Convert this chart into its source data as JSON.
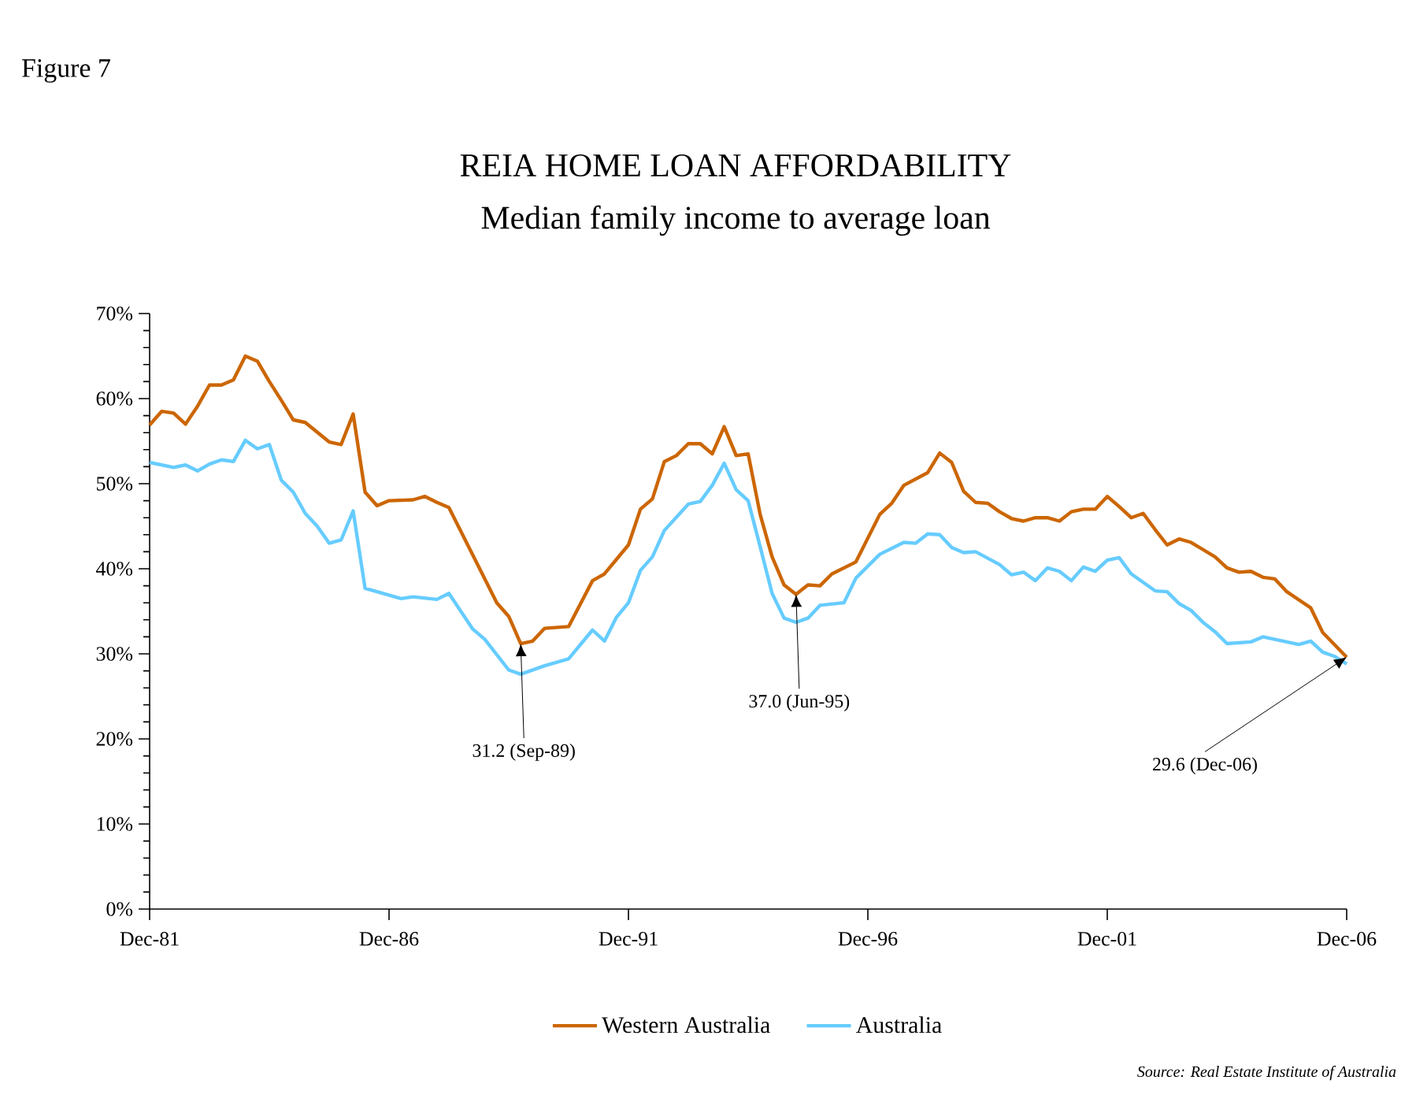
{
  "chart_data": {
    "type": "line",
    "title": "REIA HOME LOAN AFFORDABILITY",
    "subtitle": "Median family income to average loan",
    "annotations": [
      "Figure 7",
      "Source: Real Estate Institute of Australia",
      {
        "text": "31.2 (Sep-89)",
        "x": "1989-09",
        "y": 31.2
      },
      {
        "text": "37.0 (Jun-95)",
        "x": "1995-06",
        "y": 37.0
      },
      {
        "text": "29.6 (Dec-06)",
        "x": "2006-12",
        "y": 29.6
      }
    ],
    "series": [
      {
        "name": "Western Australia",
        "color": "#cc6600",
        "x": [
          "1981-12",
          "1982-03",
          "1982-06",
          "1982-09",
          "1982-12",
          "1983-03",
          "1983-06",
          "1983-09",
          "1983-12",
          "1984-03",
          "1984-06",
          "1984-09",
          "1984-12",
          "1985-03",
          "1985-09",
          "1985-12",
          "1986-03",
          "1986-06",
          "1986-09",
          "1986-12",
          "1987-06",
          "1987-09",
          "1987-12",
          "1988-03",
          "1989-03",
          "1989-06",
          "1989-09",
          "1989-12",
          "1990-03",
          "1990-09",
          "1991-03",
          "1991-06",
          "1991-12",
          "1992-03",
          "1992-06",
          "1992-09",
          "1992-12",
          "1993-03",
          "1993-06",
          "1993-09",
          "1993-12",
          "1994-03",
          "1994-06",
          "1994-09",
          "1994-12",
          "1995-03",
          "1995-06",
          "1995-09",
          "1995-12",
          "1996-03",
          "1996-09",
          "1997-03",
          "1997-06",
          "1997-09",
          "1998-03",
          "1998-06",
          "1998-09",
          "1998-12",
          "1999-03",
          "1999-06",
          "1999-09",
          "1999-12",
          "2000-03",
          "2000-06",
          "2000-09",
          "2000-12",
          "2001-03",
          "2001-06",
          "2001-09",
          "2001-12",
          "2002-03",
          "2002-06",
          "2002-09",
          "2002-12",
          "2003-03",
          "2003-06",
          "2003-09",
          "2004-03",
          "2004-06",
          "2004-09",
          "2004-12",
          "2005-03",
          "2005-06",
          "2005-09",
          "2006-03",
          "2006-06",
          "2006-12"
        ],
        "values": [
          56.9,
          58.5,
          58.3,
          57.0,
          59.1,
          61.6,
          61.6,
          62.2,
          65.0,
          64.4,
          62.0,
          59.8,
          57.5,
          57.2,
          54.9,
          54.6,
          58.2,
          49.0,
          47.4,
          48.0,
          48.1,
          48.5,
          47.8,
          47.2,
          36.0,
          34.4,
          31.2,
          31.5,
          33.0,
          33.2,
          38.6,
          39.4,
          42.8,
          47.0,
          48.2,
          52.6,
          53.3,
          54.7,
          54.7,
          53.5,
          56.7,
          53.3,
          53.5,
          46.4,
          41.4,
          38.1,
          37.0,
          38.1,
          38.0,
          39.4,
          40.8,
          46.4,
          47.7,
          49.8,
          51.3,
          53.6,
          52.5,
          49.1,
          47.8,
          47.7,
          46.7,
          45.9,
          45.6,
          46.0,
          46.0,
          45.6,
          46.7,
          47.0,
          47.0,
          48.5,
          47.3,
          46.0,
          46.5,
          44.6,
          42.8,
          43.5,
          43.1,
          41.4,
          40.1,
          39.6,
          39.7,
          39.0,
          38.8,
          37.3,
          35.4,
          32.5,
          29.6
        ]
      },
      {
        "name": "Australia",
        "color": "#66ccff",
        "x": [
          "1981-12",
          "1982-06",
          "1982-09",
          "1982-12",
          "1983-03",
          "1983-06",
          "1983-09",
          "1983-12",
          "1984-03",
          "1984-06",
          "1984-09",
          "1984-12",
          "1985-03",
          "1985-06",
          "1985-09",
          "1985-12",
          "1986-03",
          "1986-06",
          "1986-09",
          "1987-03",
          "1987-06",
          "1987-12",
          "1988-03",
          "1988-09",
          "1988-12",
          "1989-06",
          "1989-09",
          "1990-03",
          "1990-09",
          "1991-03",
          "1991-06",
          "1991-09",
          "1991-12",
          "1992-03",
          "1992-06",
          "1992-09",
          "1993-03",
          "1993-06",
          "1993-09",
          "1993-12",
          "1994-03",
          "1994-06",
          "1994-09",
          "1994-12",
          "1995-03",
          "1995-06",
          "1995-09",
          "1995-12",
          "1996-06",
          "1996-09",
          "1997-03",
          "1997-09",
          "1997-12",
          "1998-03",
          "1998-06",
          "1998-09",
          "1998-12",
          "1999-03",
          "1999-09",
          "1999-12",
          "2000-03",
          "2000-06",
          "2000-09",
          "2000-12",
          "2001-03",
          "2001-06",
          "2001-09",
          "2001-12",
          "2002-03",
          "2002-06",
          "2002-12",
          "2003-03",
          "2003-06",
          "2003-09",
          "2003-12",
          "2004-03",
          "2004-06",
          "2004-12",
          "2005-03",
          "2005-06",
          "2005-12",
          "2006-03",
          "2006-06",
          "2006-09",
          "2006-12"
        ],
        "values": [
          52.5,
          51.9,
          52.2,
          51.5,
          52.3,
          52.8,
          52.6,
          55.1,
          54.1,
          54.6,
          50.4,
          49.0,
          46.5,
          45.0,
          43.0,
          43.4,
          46.8,
          37.7,
          37.3,
          36.5,
          36.7,
          36.4,
          37.1,
          32.9,
          31.7,
          28.1,
          27.6,
          28.6,
          29.4,
          32.8,
          31.5,
          34.3,
          36.0,
          39.8,
          41.4,
          44.5,
          47.6,
          47.9,
          49.8,
          52.4,
          49.3,
          48.0,
          42.6,
          37.1,
          34.2,
          33.7,
          34.2,
          35.7,
          36.0,
          38.9,
          41.7,
          43.1,
          43.0,
          44.1,
          44.0,
          42.5,
          41.9,
          42.0,
          40.5,
          39.3,
          39.6,
          38.6,
          40.1,
          39.7,
          38.6,
          40.2,
          39.7,
          41.0,
          41.3,
          39.4,
          37.4,
          37.3,
          35.9,
          35.1,
          33.7,
          32.6,
          31.2,
          31.4,
          32.0,
          31.7,
          31.1,
          31.5,
          30.2,
          29.7,
          28.8
        ]
      }
    ],
    "xlim": [
      "1981-12",
      "2006-12"
    ],
    "xticks": [
      {
        "value": "1981-12",
        "label": "Dec-81"
      },
      {
        "value": "1986-12",
        "label": "Dec-86"
      },
      {
        "value": "1991-12",
        "label": "Dec-91"
      },
      {
        "value": "1996-12",
        "label": "Dec-96"
      },
      {
        "value": "2001-12",
        "label": "Dec-01"
      },
      {
        "value": "2006-12",
        "label": "Dec-06"
      }
    ],
    "ylim": [
      0,
      70
    ],
    "yticks": [
      {
        "value": 0,
        "label": "0%"
      },
      {
        "value": 10,
        "label": "10%"
      },
      {
        "value": 20,
        "label": "20%"
      },
      {
        "value": 30,
        "label": "30%"
      },
      {
        "value": 40,
        "label": "40%"
      },
      {
        "value": 50,
        "label": "50%"
      },
      {
        "value": 60,
        "label": "60%"
      },
      {
        "value": 70,
        "label": "70%"
      }
    ],
    "grid": false,
    "legend": "bottom",
    "marker": "none",
    "line_style": "solid"
  }
}
